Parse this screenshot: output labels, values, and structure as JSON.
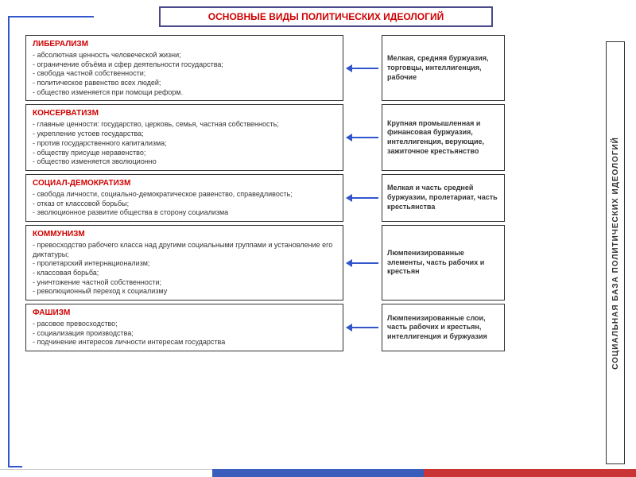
{
  "title": "ОСНОВНЫЕ ВИДЫ ПОЛИТИЧЕСКИХ ИДЕОЛОГИЙ",
  "vertical_label": "СОЦИАЛЬНАЯ   БАЗА   ПОЛИТИЧЕСКИХ   ИДЕОЛОГИЙ",
  "colors": {
    "title_text": "#d00000",
    "heading_text": "#d00000",
    "border": "#333333",
    "title_border": "#4a4a8a",
    "arrow": "#3355cc",
    "body_text": "#333333",
    "bg": "#ffffff"
  },
  "ideologies": [
    {
      "name": "ЛИБЕРАЛИЗМ",
      "points": "- абсолютная ценность человеческой жизни;\n- ограничение объёма и сфер деятельности государства;\n- свобода частной собственности;\n- политическое равенство всех людей;\n- общество изменяется при помощи реформ.",
      "base": "Мелкая, средняя буржуазия, торговцы, интеллигенция, рабочие"
    },
    {
      "name": "КОНСЕРВАТИЗМ",
      "points": "- главные ценности: государство, церковь, семья, частная собственность;\n- укрепление устоев государства;\n- против государственного капитализма;\n- обществу присуще неравенство;\n- общество изменяется эволюционно",
      "base": "Крупная промышленная и финансовая буржуазия, интеллигенция, верующие, зажиточное крестьянство"
    },
    {
      "name": "СОЦИАЛ-ДЕМОКРАТИЗМ",
      "points": "- свобода личности, социально-демократическое равенство, справедливость;\n- отказ от классовой борьбы;\n- эволюционное развитие общества в сторону социализма",
      "base": "Мелкая и часть средней буржуазии, пролетариат, часть крестьянства"
    },
    {
      "name": "КОММУНИЗМ",
      "points": "- превосходство рабочего класса над другими социальными группами и установление его диктатуры;\n- пролетарский интернационализм;\n- классовая борьба;\n- уничтожение частной собственности;\n- революционный переход к социализму",
      "base": "Люмпенизированные элементы, часть рабочих и крестьян"
    },
    {
      "name": "ФАШИЗМ",
      "points": "- расовое превосходство;\n- социализация производства;\n- подчинение интересов личности интересам государства",
      "base": "Люмпенизированные слои, часть рабочих и крестьян, интеллигенция и буржуазия"
    }
  ]
}
